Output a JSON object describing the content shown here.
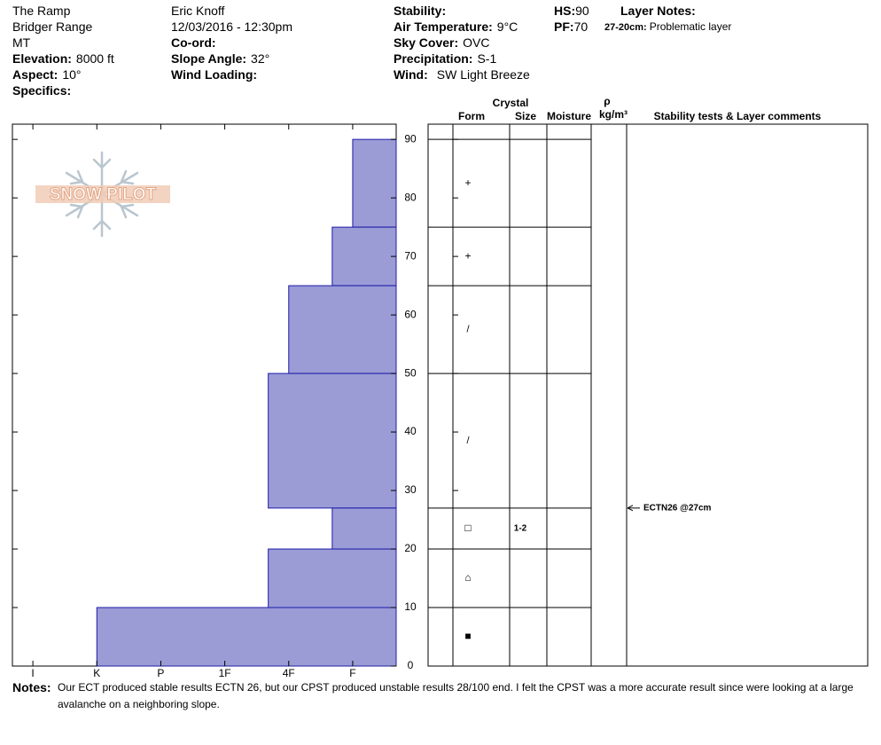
{
  "header": {
    "location": "The Ramp",
    "range": "Bridger Range",
    "state": "MT",
    "elevation": {
      "label": "Elevation:",
      "value": "8000 ft"
    },
    "aspect": {
      "label": "Aspect:",
      "value": "10°"
    },
    "specifics": {
      "label": "Specifics:"
    },
    "observer": "Eric Knoff",
    "datetime": "12/03/2016 - 12:30pm",
    "coord": {
      "label": "Co-ord:"
    },
    "slope_angle": {
      "label": "Slope Angle:",
      "value": "32°"
    },
    "wind_loading": {
      "label": "Wind Loading:"
    },
    "stability": {
      "label": "Stability:"
    },
    "air_temperature": {
      "label": "Air Temperature:",
      "value": "9°C"
    },
    "sky_cover": {
      "label": "Sky Cover:",
      "value": "OVC"
    },
    "precipitation": {
      "label": "Precipitation:",
      "value": "S-1"
    },
    "wind": {
      "label": "Wind:",
      "value": "SW Light Breeze"
    },
    "hs": {
      "label": "HS:",
      "value": "90"
    },
    "pf": {
      "label": "PF:",
      "value": "70"
    },
    "layer_notes": {
      "label": "Layer Notes:",
      "items": [
        {
          "range": "27-20cm:",
          "text": "Problematic layer"
        }
      ]
    }
  },
  "logo": "SNOW PILOT",
  "profile_table": {
    "crystal": "Crystal",
    "form": "Form",
    "size": "Size",
    "moisture": "Moisture",
    "rho": "ρ",
    "density_unit": "kg/m³",
    "comments": "Stability tests & Layer comments"
  },
  "chart_data": {
    "type": "hardness-profile",
    "color": "#9b9bd6",
    "ylim": [
      0,
      92.6
    ],
    "yticks": [
      0,
      10,
      20,
      30,
      40,
      50,
      60,
      70,
      80,
      90
    ],
    "xlim": [
      6.32,
      0.32
    ],
    "xticks": [
      {
        "value": 6,
        "label": "I"
      },
      {
        "value": 5,
        "label": "K"
      },
      {
        "value": 4,
        "label": "P"
      },
      {
        "value": 3,
        "label": "1F"
      },
      {
        "value": 2,
        "label": "4F"
      },
      {
        "value": 1,
        "label": "F"
      }
    ],
    "layers": [
      {
        "top": 90,
        "bottom": 75,
        "hardness": 1,
        "form": "+"
      },
      {
        "top": 75,
        "bottom": 65,
        "hardness": 1.32,
        "form": "+"
      },
      {
        "top": 65,
        "bottom": 50,
        "hardness": 2,
        "form": "/"
      },
      {
        "top": 50,
        "bottom": 27,
        "hardness": 2.32,
        "form": "/"
      },
      {
        "top": 27,
        "bottom": 20,
        "hardness": 1.32,
        "form": "□",
        "size": "1-2"
      },
      {
        "top": 20,
        "bottom": 10,
        "hardness": 2.32,
        "form": "⌂"
      },
      {
        "top": 10,
        "bottom": 0,
        "hardness": 5,
        "form": "■"
      }
    ],
    "tests": [
      {
        "depth": 27,
        "label": "ECTN26 @27cm"
      }
    ]
  },
  "notes": {
    "label": "Notes:",
    "text": "Our ECT produced stable results ECTN 26, but our CPST produced unstable results 28/100 end. I felt the CPST was a more accurate result since were looking at a large avalanche on a neighboring slope."
  }
}
